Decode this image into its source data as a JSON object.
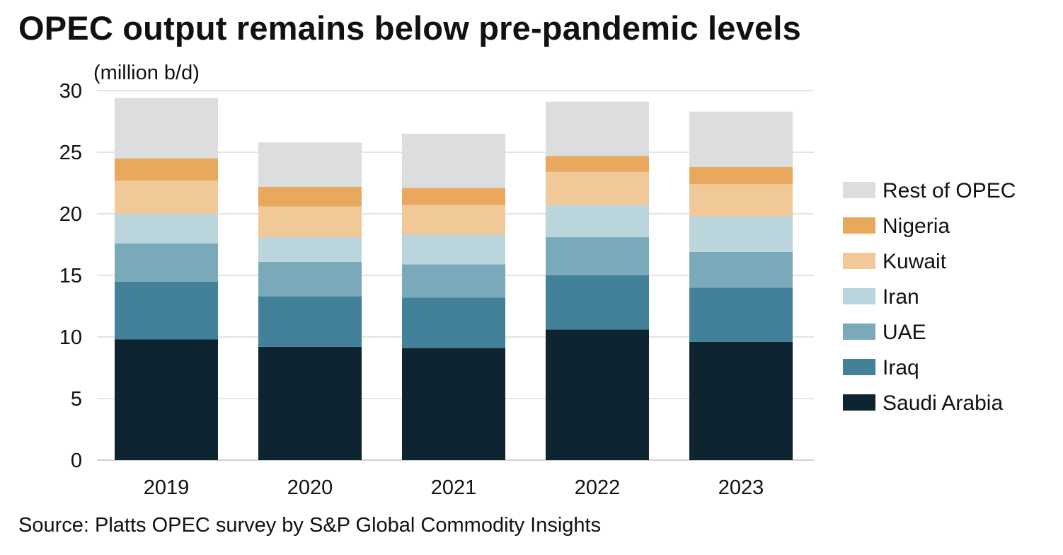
{
  "title": "OPEC output remains below pre-pandemic levels",
  "source": "Source: Platts OPEC survey by S&P Global Commodity Insights",
  "chart_data": {
    "type": "bar",
    "stacked": true,
    "title": "OPEC output remains below pre-pandemic levels",
    "unit_label": "(million b/d)",
    "xlabel": "",
    "ylabel": "(million b/d)",
    "ylim": [
      0,
      30
    ],
    "yticks": [
      0,
      5,
      10,
      15,
      20,
      25,
      30
    ],
    "grid": true,
    "legend_position": "right",
    "categories": [
      "2019",
      "2020",
      "2021",
      "2022",
      "2023"
    ],
    "series": [
      {
        "name": "Saudi Arabia",
        "color": "#0e2430",
        "values": [
          9.8,
          9.2,
          9.1,
          10.6,
          9.6
        ]
      },
      {
        "name": "Iraq",
        "color": "#43809a",
        "values": [
          4.7,
          4.1,
          4.1,
          4.4,
          4.4
        ]
      },
      {
        "name": "UAE",
        "color": "#7aa9ba",
        "values": [
          3.1,
          2.8,
          2.7,
          3.1,
          2.9
        ]
      },
      {
        "name": "Iran",
        "color": "#bbd5dd",
        "values": [
          2.4,
          2.0,
          2.4,
          2.6,
          2.9
        ]
      },
      {
        "name": "Kuwait",
        "color": "#f1c999",
        "values": [
          2.7,
          2.5,
          2.4,
          2.7,
          2.6
        ]
      },
      {
        "name": "Nigeria",
        "color": "#e8a85d",
        "values": [
          1.8,
          1.6,
          1.4,
          1.3,
          1.4
        ]
      },
      {
        "name": "Rest of OPEC",
        "color": "#dcdddf",
        "values": [
          4.9,
          3.6,
          4.4,
          4.4,
          4.5
        ]
      }
    ]
  }
}
